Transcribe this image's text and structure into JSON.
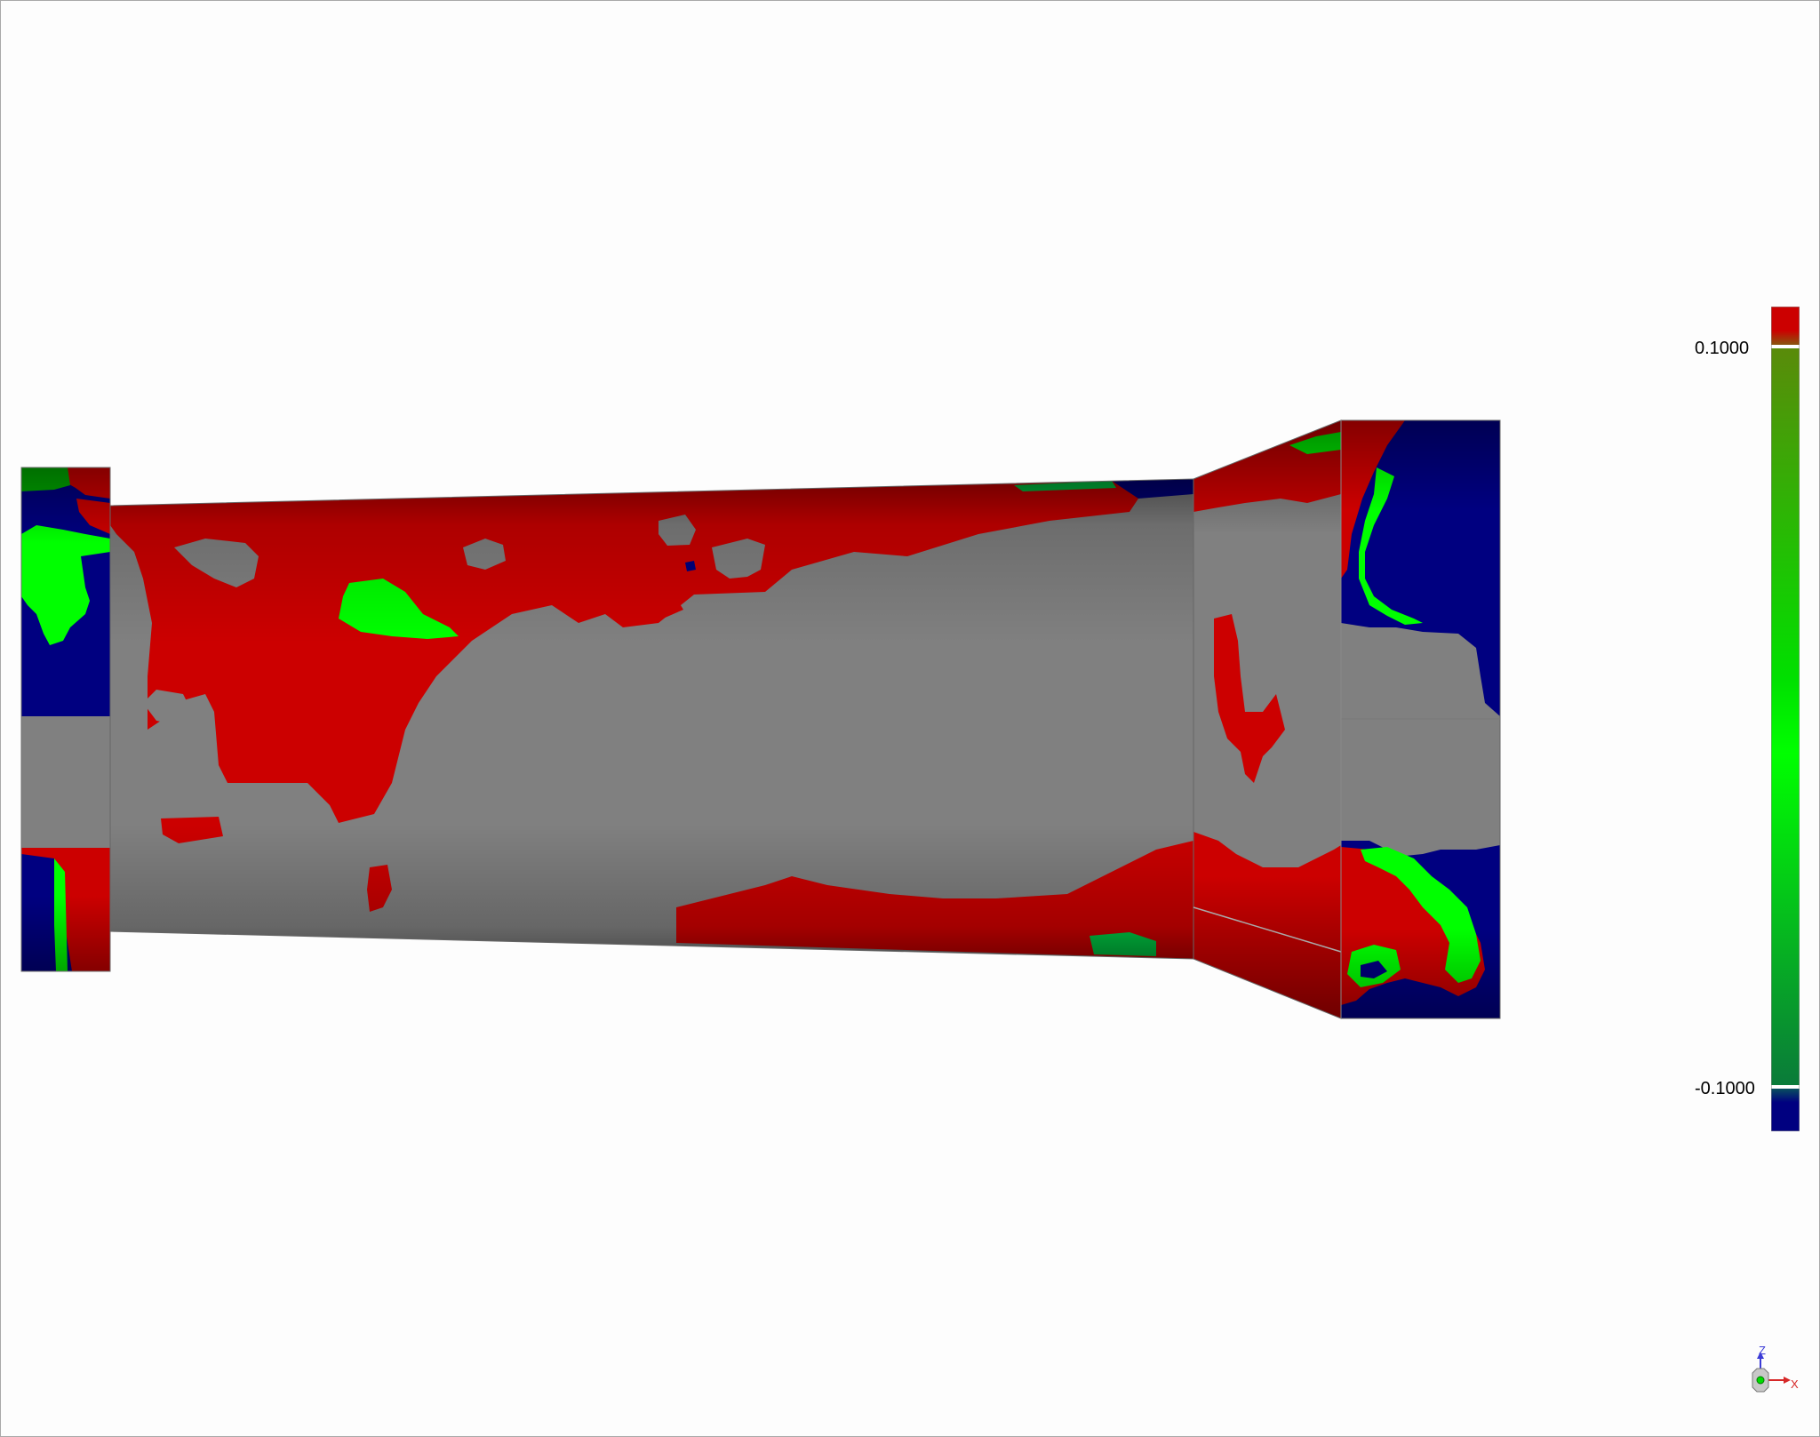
{
  "legend": {
    "max_label": "0.1000",
    "min_label": "-0.1000",
    "colors": {
      "above_max": "#cc0000",
      "upper": "#5a8a0a",
      "mid": "#00ff00",
      "lower": "#0a7a3a",
      "below_min": "#000080",
      "within_tolerance": "#808080"
    }
  },
  "triad": {
    "z_label": "Z",
    "x_label": "X",
    "icon": "orientation-triad-icon"
  }
}
